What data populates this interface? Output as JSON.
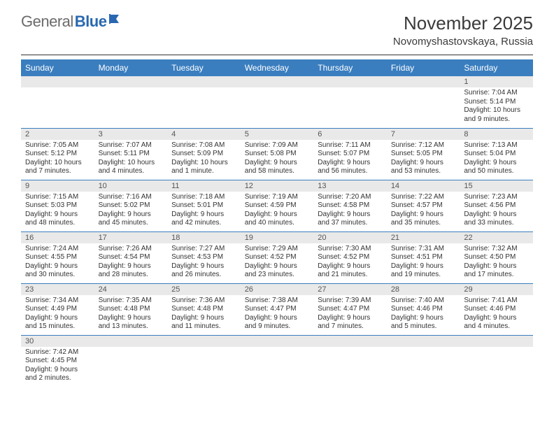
{
  "logo": {
    "gray": "General",
    "blue": "Blue"
  },
  "title": "November 2025",
  "location": "Novomyshastovskaya, Russia",
  "colors": {
    "header_bg": "#3a7ebf",
    "header_text": "#ffffff",
    "daynum_bg": "#e9e9e9",
    "row_divider": "#3a7ebf",
    "logo_gray": "#6b6b6b",
    "logo_blue": "#2968b0"
  },
  "days_of_week": [
    "Sunday",
    "Monday",
    "Tuesday",
    "Wednesday",
    "Thursday",
    "Friday",
    "Saturday"
  ],
  "weeks": [
    [
      {
        "n": "",
        "sr": "",
        "ss": "",
        "dl": ""
      },
      {
        "n": "",
        "sr": "",
        "ss": "",
        "dl": ""
      },
      {
        "n": "",
        "sr": "",
        "ss": "",
        "dl": ""
      },
      {
        "n": "",
        "sr": "",
        "ss": "",
        "dl": ""
      },
      {
        "n": "",
        "sr": "",
        "ss": "",
        "dl": ""
      },
      {
        "n": "",
        "sr": "",
        "ss": "",
        "dl": ""
      },
      {
        "n": "1",
        "sr": "Sunrise: 7:04 AM",
        "ss": "Sunset: 5:14 PM",
        "dl": "Daylight: 10 hours and 9 minutes."
      }
    ],
    [
      {
        "n": "2",
        "sr": "Sunrise: 7:05 AM",
        "ss": "Sunset: 5:12 PM",
        "dl": "Daylight: 10 hours and 7 minutes."
      },
      {
        "n": "3",
        "sr": "Sunrise: 7:07 AM",
        "ss": "Sunset: 5:11 PM",
        "dl": "Daylight: 10 hours and 4 minutes."
      },
      {
        "n": "4",
        "sr": "Sunrise: 7:08 AM",
        "ss": "Sunset: 5:09 PM",
        "dl": "Daylight: 10 hours and 1 minute."
      },
      {
        "n": "5",
        "sr": "Sunrise: 7:09 AM",
        "ss": "Sunset: 5:08 PM",
        "dl": "Daylight: 9 hours and 58 minutes."
      },
      {
        "n": "6",
        "sr": "Sunrise: 7:11 AM",
        "ss": "Sunset: 5:07 PM",
        "dl": "Daylight: 9 hours and 56 minutes."
      },
      {
        "n": "7",
        "sr": "Sunrise: 7:12 AM",
        "ss": "Sunset: 5:05 PM",
        "dl": "Daylight: 9 hours and 53 minutes."
      },
      {
        "n": "8",
        "sr": "Sunrise: 7:13 AM",
        "ss": "Sunset: 5:04 PM",
        "dl": "Daylight: 9 hours and 50 minutes."
      }
    ],
    [
      {
        "n": "9",
        "sr": "Sunrise: 7:15 AM",
        "ss": "Sunset: 5:03 PM",
        "dl": "Daylight: 9 hours and 48 minutes."
      },
      {
        "n": "10",
        "sr": "Sunrise: 7:16 AM",
        "ss": "Sunset: 5:02 PM",
        "dl": "Daylight: 9 hours and 45 minutes."
      },
      {
        "n": "11",
        "sr": "Sunrise: 7:18 AM",
        "ss": "Sunset: 5:01 PM",
        "dl": "Daylight: 9 hours and 42 minutes."
      },
      {
        "n": "12",
        "sr": "Sunrise: 7:19 AM",
        "ss": "Sunset: 4:59 PM",
        "dl": "Daylight: 9 hours and 40 minutes."
      },
      {
        "n": "13",
        "sr": "Sunrise: 7:20 AM",
        "ss": "Sunset: 4:58 PM",
        "dl": "Daylight: 9 hours and 37 minutes."
      },
      {
        "n": "14",
        "sr": "Sunrise: 7:22 AM",
        "ss": "Sunset: 4:57 PM",
        "dl": "Daylight: 9 hours and 35 minutes."
      },
      {
        "n": "15",
        "sr": "Sunrise: 7:23 AM",
        "ss": "Sunset: 4:56 PM",
        "dl": "Daylight: 9 hours and 33 minutes."
      }
    ],
    [
      {
        "n": "16",
        "sr": "Sunrise: 7:24 AM",
        "ss": "Sunset: 4:55 PM",
        "dl": "Daylight: 9 hours and 30 minutes."
      },
      {
        "n": "17",
        "sr": "Sunrise: 7:26 AM",
        "ss": "Sunset: 4:54 PM",
        "dl": "Daylight: 9 hours and 28 minutes."
      },
      {
        "n": "18",
        "sr": "Sunrise: 7:27 AM",
        "ss": "Sunset: 4:53 PM",
        "dl": "Daylight: 9 hours and 26 minutes."
      },
      {
        "n": "19",
        "sr": "Sunrise: 7:29 AM",
        "ss": "Sunset: 4:52 PM",
        "dl": "Daylight: 9 hours and 23 minutes."
      },
      {
        "n": "20",
        "sr": "Sunrise: 7:30 AM",
        "ss": "Sunset: 4:52 PM",
        "dl": "Daylight: 9 hours and 21 minutes."
      },
      {
        "n": "21",
        "sr": "Sunrise: 7:31 AM",
        "ss": "Sunset: 4:51 PM",
        "dl": "Daylight: 9 hours and 19 minutes."
      },
      {
        "n": "22",
        "sr": "Sunrise: 7:32 AM",
        "ss": "Sunset: 4:50 PM",
        "dl": "Daylight: 9 hours and 17 minutes."
      }
    ],
    [
      {
        "n": "23",
        "sr": "Sunrise: 7:34 AM",
        "ss": "Sunset: 4:49 PM",
        "dl": "Daylight: 9 hours and 15 minutes."
      },
      {
        "n": "24",
        "sr": "Sunrise: 7:35 AM",
        "ss": "Sunset: 4:48 PM",
        "dl": "Daylight: 9 hours and 13 minutes."
      },
      {
        "n": "25",
        "sr": "Sunrise: 7:36 AM",
        "ss": "Sunset: 4:48 PM",
        "dl": "Daylight: 9 hours and 11 minutes."
      },
      {
        "n": "26",
        "sr": "Sunrise: 7:38 AM",
        "ss": "Sunset: 4:47 PM",
        "dl": "Daylight: 9 hours and 9 minutes."
      },
      {
        "n": "27",
        "sr": "Sunrise: 7:39 AM",
        "ss": "Sunset: 4:47 PM",
        "dl": "Daylight: 9 hours and 7 minutes."
      },
      {
        "n": "28",
        "sr": "Sunrise: 7:40 AM",
        "ss": "Sunset: 4:46 PM",
        "dl": "Daylight: 9 hours and 5 minutes."
      },
      {
        "n": "29",
        "sr": "Sunrise: 7:41 AM",
        "ss": "Sunset: 4:46 PM",
        "dl": "Daylight: 9 hours and 4 minutes."
      }
    ],
    [
      {
        "n": "30",
        "sr": "Sunrise: 7:42 AM",
        "ss": "Sunset: 4:45 PM",
        "dl": "Daylight: 9 hours and 2 minutes."
      },
      {
        "n": "",
        "sr": "",
        "ss": "",
        "dl": ""
      },
      {
        "n": "",
        "sr": "",
        "ss": "",
        "dl": ""
      },
      {
        "n": "",
        "sr": "",
        "ss": "",
        "dl": ""
      },
      {
        "n": "",
        "sr": "",
        "ss": "",
        "dl": ""
      },
      {
        "n": "",
        "sr": "",
        "ss": "",
        "dl": ""
      },
      {
        "n": "",
        "sr": "",
        "ss": "",
        "dl": ""
      }
    ]
  ]
}
